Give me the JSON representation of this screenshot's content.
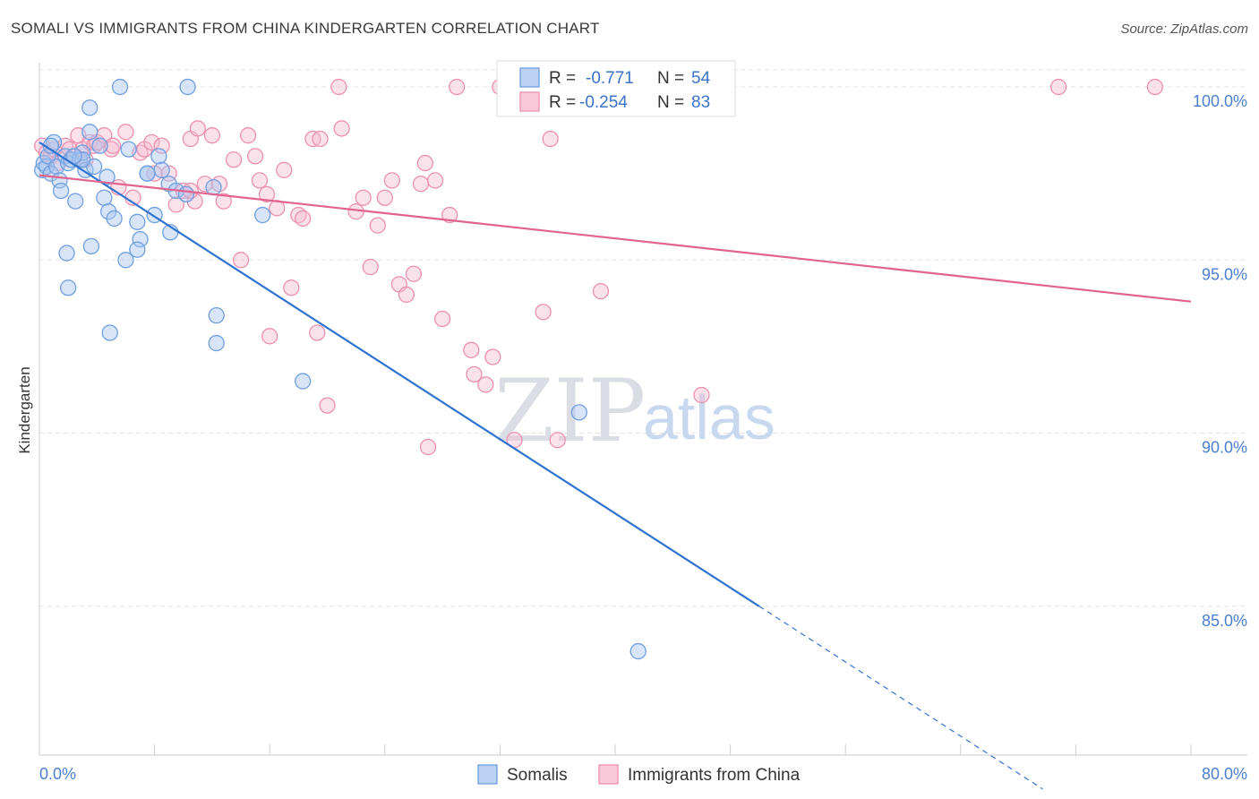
{
  "header": {
    "title": "SOMALI VS IMMIGRANTS FROM CHINA KINDERGARTEN CORRELATION CHART",
    "source": "Source: ZipAtlas.com"
  },
  "watermark": {
    "zip": "ZIP",
    "atlas": "atlas"
  },
  "colors": {
    "somali_fill": "#a9c6f0",
    "somali_stroke": "#6f9fe0",
    "somali_line": "#2f73d0",
    "china_fill": "#f7bcd0",
    "china_stroke": "#ec90b0",
    "china_line": "#e0648e",
    "tick_text": "#4a7fd0",
    "grid": "#e3e3e3"
  },
  "legend": {
    "row1": {
      "r_label": "R =",
      "r_value": "-0.771",
      "n_label": "N =",
      "n_value": "54"
    },
    "row2": {
      "r_label": "R =",
      "r_value": "-0.254",
      "n_label": "N =",
      "n_value": "83"
    }
  },
  "chart_data": {
    "type": "scatter",
    "title": "SOMALI VS IMMIGRANTS FROM CHINA KINDERGARTEN CORRELATION CHART",
    "xlabel": "",
    "ylabel": "Kindergarten",
    "xlim": [
      0,
      80
    ],
    "ylim": [
      80.7,
      100.7
    ],
    "x_tick_labels": [
      "0.0%",
      "80.0%"
    ],
    "y_ticks": [
      {
        "value": 85,
        "label": "85.0%"
      },
      {
        "value": 90,
        "label": "90.0%"
      },
      {
        "value": 95,
        "label": "95.0%"
      },
      {
        "value": 100,
        "label": "100.0%"
      }
    ],
    "series": [
      {
        "name": "Somalis",
        "r": -0.771,
        "n": 54,
        "trend": {
          "x0": 0,
          "y0": 98.4,
          "x_solid_end": 50,
          "x_dash_end": 69.7
        },
        "points": [
          [
            0.2,
            97.6
          ],
          [
            0.3,
            97.8
          ],
          [
            0.5,
            97.7
          ],
          [
            0.6,
            98.0
          ],
          [
            0.8,
            97.5
          ],
          [
            1.0,
            98.4
          ],
          [
            1.2,
            97.7
          ],
          [
            1.4,
            97.3
          ],
          [
            1.5,
            97.0
          ],
          [
            1.8,
            98.0
          ],
          [
            2.0,
            97.8
          ],
          [
            2.2,
            97.9
          ],
          [
            2.5,
            96.7
          ],
          [
            2.8,
            97.9
          ],
          [
            3.0,
            98.1
          ],
          [
            3.2,
            97.6
          ],
          [
            3.5,
            98.7
          ],
          [
            3.8,
            97.7
          ],
          [
            4.2,
            98.3
          ],
          [
            4.5,
            96.8
          ],
          [
            4.8,
            96.4
          ],
          [
            5.2,
            96.2
          ],
          [
            5.6,
            100.0
          ],
          [
            6.2,
            98.2
          ],
          [
            6.8,
            96.1
          ],
          [
            7.0,
            95.6
          ],
          [
            7.5,
            97.5
          ],
          [
            8.0,
            96.3
          ],
          [
            8.3,
            98.0
          ],
          [
            8.5,
            97.6
          ],
          [
            9.0,
            97.2
          ],
          [
            9.5,
            97.0
          ],
          [
            10.3,
            100.0
          ],
          [
            12.1,
            97.1
          ],
          [
            12.3,
            93.4
          ],
          [
            15.5,
            96.3
          ],
          [
            1.9,
            95.2
          ],
          [
            3.6,
            95.4
          ],
          [
            6.0,
            95.0
          ],
          [
            6.8,
            95.3
          ],
          [
            9.1,
            95.8
          ],
          [
            3.5,
            99.4
          ],
          [
            4.7,
            97.4
          ],
          [
            2.0,
            94.2
          ],
          [
            3.0,
            97.9
          ],
          [
            4.9,
            92.9
          ],
          [
            12.3,
            92.6
          ],
          [
            18.3,
            91.5
          ],
          [
            37.5,
            90.6
          ],
          [
            41.6,
            83.7
          ],
          [
            0.8,
            98.3
          ],
          [
            2.4,
            98.0
          ],
          [
            7.5,
            97.5
          ],
          [
            10.2,
            96.9
          ]
        ]
      },
      {
        "name": "Immigrants from China",
        "r": -0.254,
        "n": 83,
        "trend": {
          "x0": 0,
          "y0": 97.45,
          "x1": 80,
          "y1": 93.8
        },
        "points": [
          [
            0.2,
            98.3
          ],
          [
            0.5,
            98.1
          ],
          [
            0.8,
            98.0
          ],
          [
            1.0,
            98.2
          ],
          [
            1.3,
            97.8
          ],
          [
            1.8,
            98.3
          ],
          [
            2.1,
            98.2
          ],
          [
            2.5,
            98.0
          ],
          [
            2.7,
            98.6
          ],
          [
            3.0,
            98.2
          ],
          [
            3.2,
            97.9
          ],
          [
            3.5,
            98.4
          ],
          [
            3.8,
            98.3
          ],
          [
            4.0,
            98.4
          ],
          [
            4.5,
            98.6
          ],
          [
            5.0,
            98.2
          ],
          [
            5.5,
            97.1
          ],
          [
            6.0,
            98.7
          ],
          [
            6.5,
            96.8
          ],
          [
            7.0,
            98.1
          ],
          [
            7.3,
            98.2
          ],
          [
            7.8,
            98.4
          ],
          [
            8.0,
            97.5
          ],
          [
            8.5,
            98.3
          ],
          [
            9.0,
            97.5
          ],
          [
            9.5,
            96.6
          ],
          [
            10.0,
            97.0
          ],
          [
            10.5,
            98.5
          ],
          [
            10.8,
            96.7
          ],
          [
            11.0,
            98.8
          ],
          [
            11.5,
            97.2
          ],
          [
            12.0,
            98.6
          ],
          [
            12.5,
            97.2
          ],
          [
            12.8,
            96.7
          ],
          [
            13.5,
            97.9
          ],
          [
            14.0,
            95.0
          ],
          [
            14.5,
            98.6
          ],
          [
            15.0,
            98.0
          ],
          [
            15.3,
            97.3
          ],
          [
            15.8,
            96.9
          ],
          [
            16.0,
            92.8
          ],
          [
            16.5,
            96.5
          ],
          [
            17.0,
            97.6
          ],
          [
            17.5,
            94.2
          ],
          [
            18.0,
            96.3
          ],
          [
            18.3,
            96.2
          ],
          [
            19.0,
            98.5
          ],
          [
            19.3,
            92.9
          ],
          [
            19.5,
            98.5
          ],
          [
            20.0,
            90.8
          ],
          [
            20.8,
            100.0
          ],
          [
            21.0,
            98.8
          ],
          [
            22.0,
            96.4
          ],
          [
            22.5,
            96.8
          ],
          [
            23.0,
            94.8
          ],
          [
            23.5,
            96.0
          ],
          [
            24.0,
            96.8
          ],
          [
            24.5,
            97.3
          ],
          [
            25.0,
            94.3
          ],
          [
            25.5,
            94.0
          ],
          [
            26.0,
            94.6
          ],
          [
            26.5,
            97.2
          ],
          [
            26.8,
            97.8
          ],
          [
            27.0,
            89.6
          ],
          [
            27.5,
            97.3
          ],
          [
            28.0,
            93.3
          ],
          [
            28.5,
            96.3
          ],
          [
            29.0,
            100.0
          ],
          [
            30.0,
            92.4
          ],
          [
            30.2,
            91.7
          ],
          [
            31.0,
            91.4
          ],
          [
            31.5,
            92.2
          ],
          [
            32.0,
            100.0
          ],
          [
            33.0,
            89.8
          ],
          [
            35.0,
            93.5
          ],
          [
            35.5,
            98.5
          ],
          [
            36.0,
            89.8
          ],
          [
            39.0,
            94.1
          ],
          [
            46.0,
            91.1
          ],
          [
            70.8,
            100.0
          ],
          [
            77.5,
            100.0
          ],
          [
            10.5,
            97.0
          ],
          [
            5.1,
            98.3
          ]
        ]
      }
    ],
    "legend_position": "top-center",
    "grid": true
  },
  "bottom_legend": [
    {
      "label": "Somalis"
    },
    {
      "label": "Immigrants from China"
    }
  ]
}
